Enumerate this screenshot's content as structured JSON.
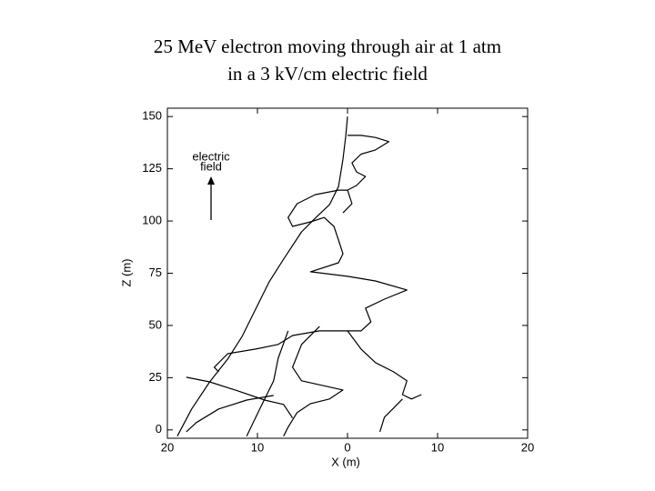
{
  "chart_data": {
    "type": "line",
    "title": [
      "25 MeV electron moving through air at 1 atm",
      "in a 3 kV/cm electric field"
    ],
    "x_label": "X (m)",
    "y_label": "Z (m)",
    "annotation": [
      "electric",
      "field"
    ],
    "xlim": [
      -20,
      20
    ],
    "xticks": [
      {
        "value": -20,
        "label": "20"
      },
      {
        "value": -10,
        "label": "10"
      },
      0,
      10,
      20
    ],
    "ylim": [
      -4,
      154
    ],
    "yticks": [
      0,
      25,
      50,
      75,
      100,
      125,
      150
    ],
    "series": [
      {
        "color": "#000000",
        "x": [
          0,
          -0.2,
          -0.5,
          -1,
          -2,
          -3.6,
          -5.1,
          -7.1,
          -8.7,
          -10.2,
          -11.7,
          -13.3,
          -15.3,
          -17.3,
          -18.9
        ],
        "values": [
          150,
          140.4,
          129.6,
          116.5,
          107.8,
          101.3,
          94.8,
          81.7,
          70.9,
          57.8,
          44.8,
          33.9,
          23,
          10,
          -3
        ]
      },
      {
        "color": "#000000",
        "x": [
          0,
          1.5,
          3.1,
          4.6,
          3.1,
          1.5,
          0.5,
          1,
          2,
          1,
          0,
          0.5,
          -0.5
        ],
        "values": [
          141,
          141,
          140,
          138,
          134,
          132,
          127.8,
          123.5,
          121.3,
          117,
          114.8,
          108.3,
          103.9
        ]
      },
      {
        "color": "#000000",
        "x": [
          0,
          -1,
          -3.6,
          -5.6,
          -6.6,
          -6.1,
          -4.1,
          -2.6,
          -1.5,
          -1,
          -0.5,
          -1,
          -4.1,
          0,
          3.1,
          6.6,
          4.1,
          2,
          2.6,
          1.5,
          0
        ],
        "values": [
          114.8,
          114.8,
          112.6,
          108.3,
          101.7,
          97.4,
          99.6,
          101.7,
          97.4,
          90.9,
          84.3,
          80,
          75.7,
          73.5,
          71.3,
          67,
          62.6,
          58.3,
          51.7,
          47.4,
          47.4
        ]
      },
      {
        "color": "#000000",
        "x": [
          0,
          -3.1,
          -6.1,
          -7.7,
          -10.2,
          -13.3,
          -14.8,
          -14.3
        ],
        "values": [
          47.4,
          47.4,
          45.2,
          40.9,
          38.7,
          36.5,
          30,
          27.8
        ]
      },
      {
        "color": "#000000",
        "x": [
          0,
          1.5,
          3.1,
          5.1,
          6.6,
          6.1,
          7.1,
          8.2
        ],
        "values": [
          47.4,
          38.7,
          32.2,
          27.8,
          23.5,
          16.9,
          14.8,
          16.9
        ]
      },
      {
        "color": "#000000",
        "x": [
          6.1,
          5.1,
          4.1,
          3.6
        ],
        "values": [
          14.8,
          10.4,
          6.1,
          -0.9
        ]
      },
      {
        "color": "#000000",
        "x": [
          -6.6,
          -7.7,
          -8.2,
          -9.7,
          -11.2
        ],
        "values": [
          47.4,
          34.3,
          23.5,
          10.4,
          -3
        ]
      },
      {
        "color": "#000000",
        "x": [
          -8.2,
          -11.2,
          -14.3,
          -16.8,
          -17.9
        ],
        "values": [
          16.5,
          14.3,
          10,
          3.5,
          -0.9
        ]
      },
      {
        "color": "#000000",
        "x": [
          -3.1,
          -5.1,
          -6.1,
          -5.1,
          -0.5,
          -2,
          -4.1,
          -5.6,
          -6.6,
          -7.1
        ],
        "values": [
          49.6,
          40.9,
          30,
          23.5,
          19.1,
          14.8,
          12.6,
          8.3,
          1.3,
          -3
        ]
      },
      {
        "color": "#000000",
        "x": [
          -17.9,
          -15.3,
          -12.2,
          -9.2,
          -7.1,
          -6.1
        ],
        "values": [
          25.2,
          23,
          18.7,
          14.3,
          12.2,
          5.7
        ]
      }
    ]
  }
}
